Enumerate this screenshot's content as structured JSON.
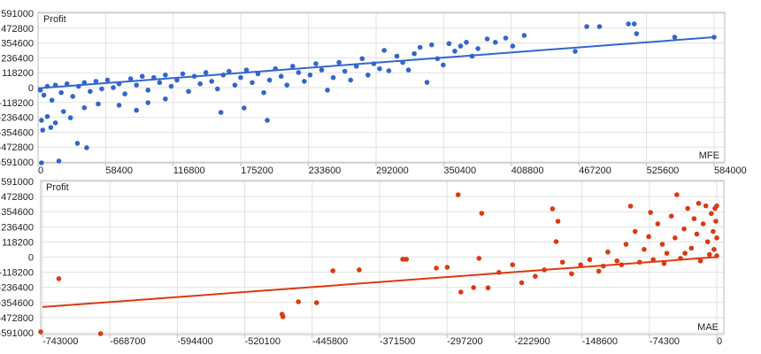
{
  "chart_data": [
    {
      "type": "scatter",
      "ylabel": "Profit",
      "xlabel": "MFE",
      "xlim": [
        0,
        584000
      ],
      "ylim": [
        -591000,
        591000
      ],
      "xticks": [
        "0",
        "58400",
        "116800",
        "175200",
        "233600",
        "292000",
        "350400",
        "408800",
        "467200",
        "525600",
        "584000"
      ],
      "yticks": [
        "591000",
        "472800",
        "354600",
        "236400",
        "118200",
        "0",
        "-118200",
        "-236400",
        "-354600",
        "-472800",
        "-591000"
      ],
      "grid": true,
      "color": "#3366cc",
      "trendline": [
        [
          0,
          -5000
        ],
        [
          584000,
          401000
        ]
      ],
      "points": [
        [
          3000,
          -598000
        ],
        [
          18000,
          -584000
        ],
        [
          34000,
          -443000
        ],
        [
          42000,
          -478000
        ],
        [
          4000,
          -338000
        ],
        [
          11000,
          -317000
        ],
        [
          3000,
          -260000
        ],
        [
          8000,
          -230000
        ],
        [
          15000,
          -280000
        ],
        [
          22000,
          -190000
        ],
        [
          28000,
          -240000
        ],
        [
          40000,
          -160000
        ],
        [
          52000,
          -130000
        ],
        [
          70000,
          -140000
        ],
        [
          85000,
          -180000
        ],
        [
          95000,
          -120000
        ],
        [
          110000,
          -90000
        ],
        [
          158000,
          -197000
        ],
        [
          178000,
          -162000
        ],
        [
          198000,
          -260000
        ],
        [
          2000,
          -20000
        ],
        [
          5000,
          -60000
        ],
        [
          8000,
          10000
        ],
        [
          12000,
          -100000
        ],
        [
          15000,
          20000
        ],
        [
          20000,
          -40000
        ],
        [
          25000,
          30000
        ],
        [
          30000,
          -70000
        ],
        [
          35000,
          10000
        ],
        [
          40000,
          40000
        ],
        [
          45000,
          -30000
        ],
        [
          50000,
          50000
        ],
        [
          55000,
          -10000
        ],
        [
          60000,
          60000
        ],
        [
          65000,
          0
        ],
        [
          70000,
          30000
        ],
        [
          75000,
          -50000
        ],
        [
          80000,
          70000
        ],
        [
          85000,
          20000
        ],
        [
          90000,
          90000
        ],
        [
          95000,
          -20000
        ],
        [
          100000,
          80000
        ],
        [
          105000,
          40000
        ],
        [
          110000,
          100000
        ],
        [
          115000,
          10000
        ],
        [
          120000,
          60000
        ],
        [
          125000,
          110000
        ],
        [
          130000,
          -30000
        ],
        [
          135000,
          90000
        ],
        [
          140000,
          30000
        ],
        [
          145000,
          120000
        ],
        [
          150000,
          50000
        ],
        [
          155000,
          -10000
        ],
        [
          160000,
          100000
        ],
        [
          165000,
          130000
        ],
        [
          170000,
          20000
        ],
        [
          175000,
          80000
        ],
        [
          180000,
          140000
        ],
        [
          185000,
          40000
        ],
        [
          190000,
          110000
        ],
        [
          195000,
          -40000
        ],
        [
          200000,
          60000
        ],
        [
          205000,
          150000
        ],
        [
          210000,
          90000
        ],
        [
          215000,
          20000
        ],
        [
          220000,
          170000
        ],
        [
          225000,
          120000
        ],
        [
          230000,
          50000
        ],
        [
          235000,
          100000
        ],
        [
          240000,
          190000
        ],
        [
          245000,
          140000
        ],
        [
          250000,
          -20000
        ],
        [
          255000,
          80000
        ],
        [
          260000,
          200000
        ],
        [
          265000,
          130000
        ],
        [
          270000,
          60000
        ],
        [
          275000,
          170000
        ],
        [
          280000,
          230000
        ],
        [
          285000,
          100000
        ],
        [
          290000,
          190000
        ],
        [
          295000,
          150000
        ],
        [
          299000,
          296000
        ],
        [
          303000,
          134000
        ],
        [
          310000,
          250000
        ],
        [
          315000,
          200000
        ],
        [
          320000,
          140000
        ],
        [
          325000,
          270000
        ],
        [
          330000,
          320000
        ],
        [
          336000,
          42000
        ],
        [
          340000,
          340000
        ],
        [
          345000,
          230000
        ],
        [
          350000,
          180000
        ],
        [
          355000,
          350000
        ],
        [
          360000,
          290000
        ],
        [
          365000,
          330000
        ],
        [
          370000,
          360000
        ],
        [
          375000,
          250000
        ],
        [
          380000,
          310000
        ],
        [
          388000,
          387000
        ],
        [
          395000,
          360000
        ],
        [
          404000,
          394000
        ],
        [
          410000,
          330000
        ],
        [
          420000,
          415000
        ],
        [
          464000,
          288000
        ],
        [
          474000,
          485000
        ],
        [
          485000,
          485000
        ],
        [
          510000,
          506000
        ],
        [
          515000,
          506000
        ],
        [
          517000,
          429000
        ],
        [
          550000,
          401000
        ],
        [
          584000,
          401000
        ]
      ]
    },
    {
      "type": "scatter",
      "ylabel": "Profit",
      "xlabel": "MAE",
      "xlim": [
        -743000,
        0
      ],
      "ylim": [
        -591000,
        591000
      ],
      "xticks": [
        "-743000",
        "-668700",
        "-594400",
        "-520100",
        "-445800",
        "-371500",
        "-297200",
        "-222900",
        "-148600",
        "-74300",
        "0"
      ],
      "yticks": [
        "591000",
        "472800",
        "354600",
        "236400",
        "118200",
        "0",
        "-118200",
        "-236400",
        "-354600",
        "-472800",
        "-591000"
      ],
      "grid": true,
      "color": "#dc3912",
      "trendline": [
        [
          -743000,
          -390000
        ],
        [
          0,
          0
        ]
      ],
      "points": [
        [
          -745000,
          -584000
        ],
        [
          -679000,
          -598000
        ],
        [
          -725000,
          -169000
        ],
        [
          -479000,
          -446000
        ],
        [
          -478000,
          -466000
        ],
        [
          -461000,
          -349000
        ],
        [
          -441000,
          -356000
        ],
        [
          -423000,
          -107000
        ],
        [
          -394000,
          -100000
        ],
        [
          -346000,
          -17000
        ],
        [
          -342000,
          -17000
        ],
        [
          -309000,
          -86000
        ],
        [
          -297000,
          -80000
        ],
        [
          -285000,
          487000
        ],
        [
          -259000,
          342000
        ],
        [
          -262000,
          -10000
        ],
        [
          -282000,
          -273000
        ],
        [
          -268000,
          -238000
        ],
        [
          -252000,
          -240000
        ],
        [
          -240000,
          -120000
        ],
        [
          -225000,
          -60000
        ],
        [
          -215000,
          -200000
        ],
        [
          -200000,
          -150000
        ],
        [
          -190000,
          -100000
        ],
        [
          -181000,
          377000
        ],
        [
          -175000,
          280000
        ],
        [
          -177000,
          121000
        ],
        [
          -170000,
          -40000
        ],
        [
          -160000,
          -130000
        ],
        [
          -150000,
          -60000
        ],
        [
          -140000,
          -20000
        ],
        [
          -130000,
          -110000
        ],
        [
          -120000,
          40000
        ],
        [
          -110000,
          -30000
        ],
        [
          -100000,
          100000
        ],
        [
          -95000,
          398000
        ],
        [
          -90000,
          200000
        ],
        [
          -85000,
          -40000
        ],
        [
          -80000,
          60000
        ],
        [
          -75000,
          160000
        ],
        [
          -73000,
          349000
        ],
        [
          -70000,
          -20000
        ],
        [
          -65000,
          260000
        ],
        [
          -60000,
          100000
        ],
        [
          -55000,
          30000
        ],
        [
          -50000,
          320000
        ],
        [
          -46000,
          150000
        ],
        [
          -44000,
          487000
        ],
        [
          -40000,
          -10000
        ],
        [
          -36000,
          220000
        ],
        [
          -32000,
          380000
        ],
        [
          -28000,
          70000
        ],
        [
          -25000,
          300000
        ],
        [
          -22000,
          180000
        ],
        [
          -18000,
          -30000
        ],
        [
          -15000,
          260000
        ],
        [
          -12000,
          400000
        ],
        [
          -10000,
          120000
        ],
        [
          -8000,
          20000
        ],
        [
          -6000,
          340000
        ],
        [
          -4000,
          200000
        ],
        [
          -3000,
          60000
        ],
        [
          -2000,
          380000
        ],
        [
          -1000,
          280000
        ],
        [
          0,
          150000
        ],
        [
          0,
          10000
        ],
        [
          0,
          400000
        ],
        [
          -20000,
          420000
        ],
        [
          -35000,
          30000
        ],
        [
          -58000,
          -50000
        ],
        [
          -105000,
          -60000
        ],
        [
          -125000,
          -70000
        ]
      ]
    }
  ]
}
